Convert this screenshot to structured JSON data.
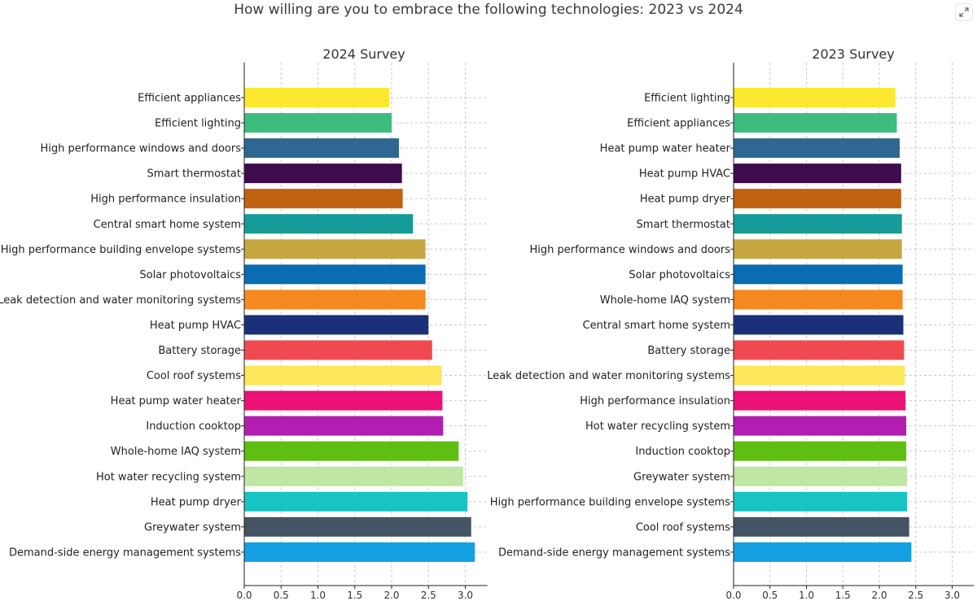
{
  "page": {
    "title": "How willing are you to embrace the following technologies: 2023 vs 2024",
    "expand_icon": "expand-icon"
  },
  "chart_data": [
    {
      "type": "bar",
      "orientation": "horizontal",
      "title": "2024 Survey",
      "xlabel": "",
      "ylabel": "",
      "xlim": [
        0,
        3.3
      ],
      "xticks": [
        0.0,
        0.5,
        1.0,
        1.5,
        2.0,
        2.5,
        3.0
      ],
      "xtick_labels": [
        "0.0",
        "0.5",
        "1.0",
        "1.5",
        "2.0",
        "2.5",
        "3.0"
      ],
      "grid": true,
      "categories": [
        "Efficient appliances",
        "Efficient lighting",
        "High performance windows and doors",
        "Smart thermostat",
        "High performance insulation",
        "Central smart home system",
        "High performance building envelope systems",
        "Solar photovoltaics",
        "Leak detection and water monitoring systems",
        "Heat pump HVAC",
        "Battery storage",
        "Cool roof systems",
        "Heat pump water heater",
        "Induction cooktop",
        "Whole-home IAQ system",
        "Hot water recycling system",
        "Heat pump dryer",
        "Greywater system",
        "Demand-side energy management systems"
      ],
      "values": [
        1.97,
        2.0,
        2.1,
        2.14,
        2.15,
        2.29,
        2.46,
        2.46,
        2.46,
        2.5,
        2.55,
        2.68,
        2.69,
        2.7,
        2.91,
        2.97,
        3.03,
        3.08,
        3.13
      ],
      "colors": [
        "#fce82f",
        "#3dbd7d",
        "#2e6892",
        "#3f0b4f",
        "#c0620f",
        "#159c98",
        "#c7a741",
        "#0a6cb2",
        "#f5891f",
        "#1a3078",
        "#f0494f",
        "#fce75a",
        "#ec1176",
        "#b21eb0",
        "#5fbe12",
        "#bfe6a3",
        "#18c3c3",
        "#455464",
        "#159fe3"
      ]
    },
    {
      "type": "bar",
      "orientation": "horizontal",
      "title": "2023 Survey",
      "xlabel": "",
      "ylabel": "",
      "xlim": [
        0,
        3.3
      ],
      "xticks": [
        0.0,
        0.5,
        1.0,
        1.5,
        2.0,
        2.5,
        3.0
      ],
      "xtick_labels": [
        "0.0",
        "0.5",
        "1.0",
        "1.5",
        "2.0",
        "2.5",
        "3.0"
      ],
      "grid": true,
      "categories": [
        "Efficient lighting",
        "Efficient appliances",
        "Heat pump water heater",
        "Heat pump HVAC",
        "Heat pump dryer",
        "Smart thermostat",
        "High performance windows and doors",
        "Solar photovoltaics",
        "Whole-home IAQ system",
        "Central smart home system",
        "Battery storage",
        "Leak detection and water monitoring systems",
        "High performance insulation",
        "Hot water recycling system",
        "Induction cooktop",
        "Greywater system",
        "High performance building envelope systems",
        "Cool roof systems",
        "Demand-side energy management systems"
      ],
      "values": [
        2.22,
        2.24,
        2.28,
        2.3,
        2.3,
        2.31,
        2.31,
        2.32,
        2.32,
        2.33,
        2.34,
        2.35,
        2.36,
        2.37,
        2.37,
        2.38,
        2.38,
        2.41,
        2.44
      ],
      "colors": [
        "#fce82f",
        "#3dbd7d",
        "#2e6892",
        "#3f0b4f",
        "#c0620f",
        "#159c98",
        "#c7a741",
        "#0a6cb2",
        "#f5891f",
        "#1a3078",
        "#f0494f",
        "#fce75a",
        "#ec1176",
        "#b21eb0",
        "#5fbe12",
        "#bfe6a3",
        "#18c3c3",
        "#455464",
        "#159fe3"
      ]
    }
  ]
}
